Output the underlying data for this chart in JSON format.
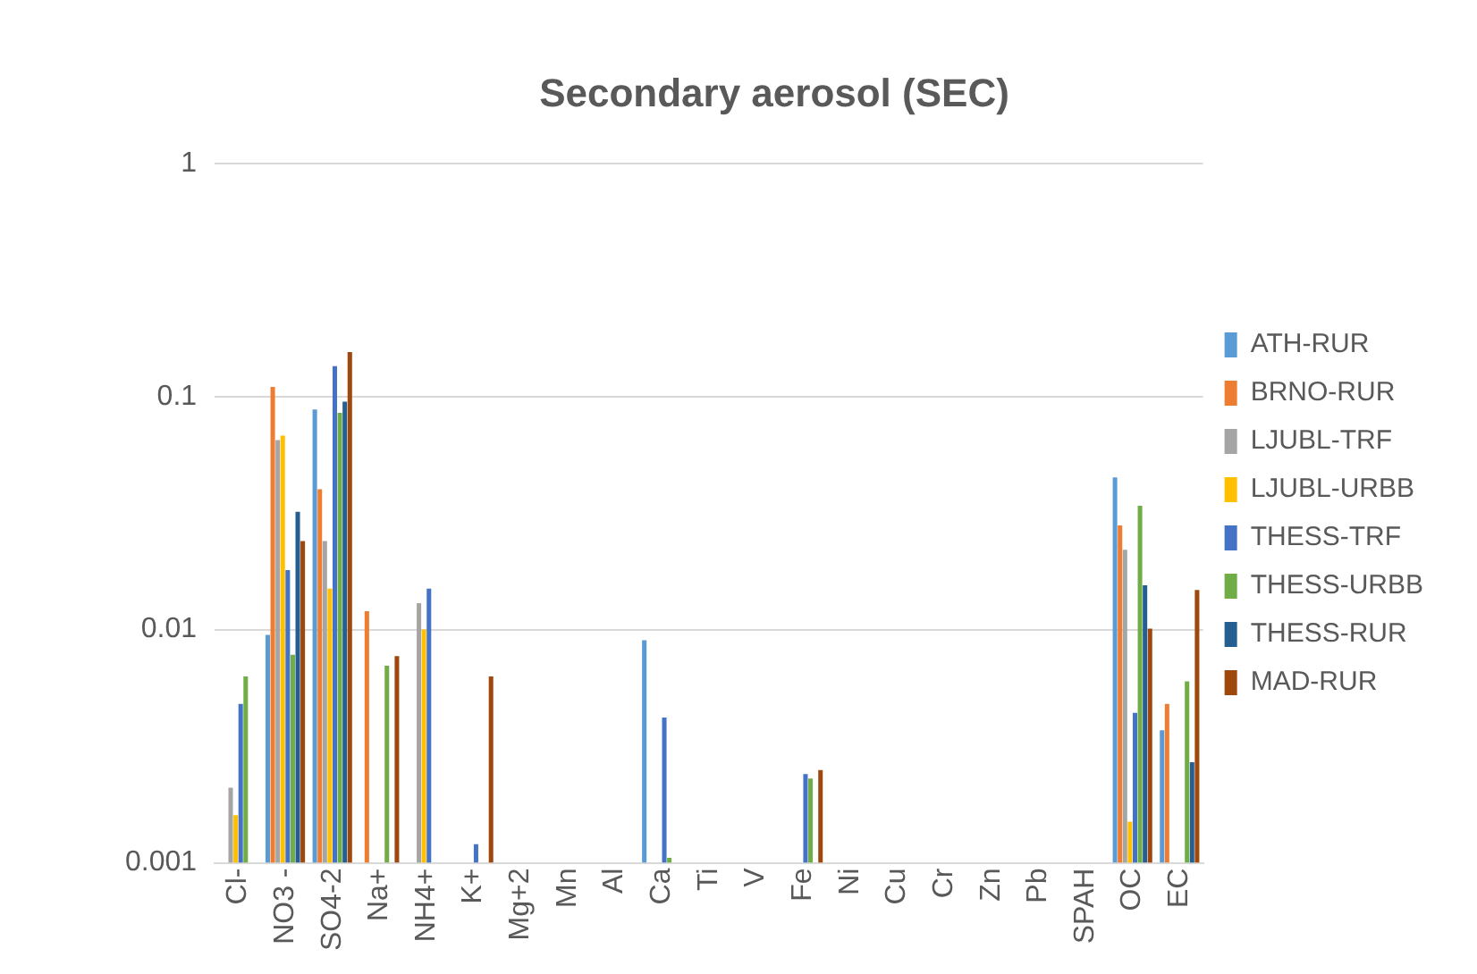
{
  "chart_data": {
    "type": "bar",
    "title": "Secondary aerosol (SEC)",
    "categories": [
      "Cl-",
      "NO3 -",
      "SO4-2",
      "Na+",
      "NH4+",
      "K+",
      "Mg+2",
      "Mn",
      "Al",
      "Ca",
      "Ti",
      "V",
      "Fe",
      "Ni",
      "Cu",
      "Cr",
      "Zn",
      "Pb",
      "SPAH",
      "OC",
      "EC"
    ],
    "series": [
      {
        "name": "ATH-RUR",
        "color": "#5b9bd5",
        "values": [
          null,
          0.0095,
          0.088,
          null,
          null,
          null,
          null,
          null,
          null,
          0.009,
          null,
          null,
          null,
          null,
          null,
          null,
          null,
          null,
          null,
          0.045,
          0.0037
        ]
      },
      {
        "name": "BRNO-RUR",
        "color": "#ed7d31",
        "values": [
          null,
          0.11,
          0.04,
          0.012,
          null,
          null,
          null,
          null,
          null,
          null,
          null,
          null,
          null,
          null,
          null,
          null,
          null,
          null,
          null,
          0.028,
          0.0048
        ]
      },
      {
        "name": "LJUBL-TRF",
        "color": "#a5a5a5",
        "values": [
          0.0021,
          0.065,
          0.024,
          null,
          0.013,
          null,
          null,
          null,
          null,
          null,
          null,
          null,
          null,
          null,
          null,
          null,
          null,
          null,
          null,
          0.022,
          null
        ]
      },
      {
        "name": "LJUBL-URBB",
        "color": "#ffc000",
        "values": [
          0.0016,
          0.068,
          0.015,
          null,
          0.01,
          null,
          null,
          null,
          null,
          null,
          null,
          null,
          null,
          null,
          null,
          null,
          null,
          null,
          null,
          0.0015,
          null
        ]
      },
      {
        "name": "THESS-TRF",
        "color": "#4472c4",
        "values": [
          0.0048,
          0.018,
          0.135,
          null,
          0.015,
          0.0012,
          null,
          null,
          null,
          0.0042,
          null,
          null,
          0.0024,
          null,
          null,
          null,
          null,
          null,
          null,
          0.0044,
          null
        ]
      },
      {
        "name": "THESS-URBB",
        "color": "#70ad47",
        "values": [
          0.0063,
          0.0078,
          0.085,
          0.007,
          null,
          null,
          null,
          null,
          null,
          0.00105,
          null,
          null,
          0.0023,
          null,
          null,
          null,
          null,
          null,
          null,
          0.034,
          0.006
        ]
      },
      {
        "name": "THESS-RUR",
        "color": "#255e91",
        "values": [
          null,
          0.032,
          0.095,
          null,
          null,
          null,
          null,
          null,
          null,
          null,
          null,
          null,
          null,
          null,
          null,
          null,
          null,
          null,
          null,
          0.0155,
          0.0027
        ]
      },
      {
        "name": "MAD-RUR",
        "color": "#9e480e",
        "values": [
          null,
          0.024,
          0.155,
          0.0077,
          null,
          0.0063,
          null,
          null,
          null,
          null,
          null,
          null,
          0.0025,
          null,
          null,
          null,
          null,
          null,
          null,
          0.0101,
          0.0148
        ]
      }
    ],
    "ylim": [
      0.001,
      1
    ],
    "yticks": [
      0.001,
      0.01,
      0.1,
      1
    ],
    "log": "y",
    "grid": "y",
    "legend": "right"
  }
}
